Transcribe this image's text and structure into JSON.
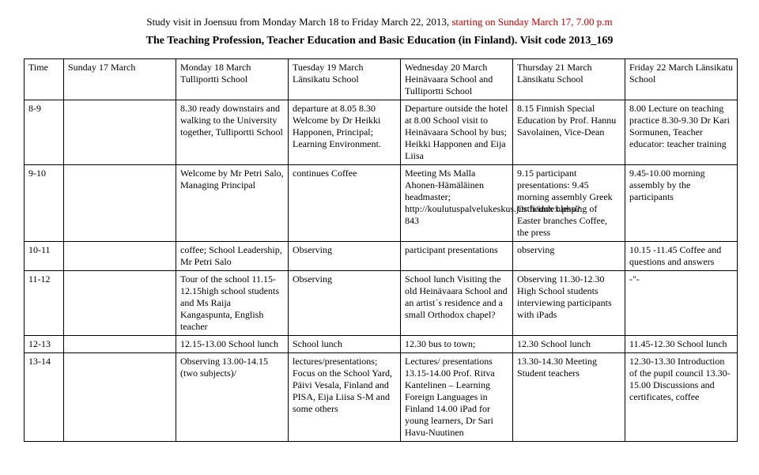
{
  "header": {
    "line1_a": "Study visit in Joensuu from Monday March 18 to Friday March 22, 2013, ",
    "line1_b": "starting on Sunday March 17, 7.00 p.m",
    "line2": "The Teaching Profession, Teacher Education and Basic Education (in Finland). Visit code 2013_169"
  },
  "table": {
    "columns": [
      "Time",
      "Sunday 17 March",
      "Monday 18 March Tulliportti School",
      "Tuesday 19 March Länsikatu School",
      "Wednesday 20 March Heinävaara School and Tulliportti School",
      "Thursday 21 March Länsikatu School",
      "Friday 22 March Länsikatu School"
    ],
    "rows": [
      {
        "time": "8-9",
        "sun": "",
        "mon": "8.30 ready downstairs and walking to the University together, Tulliportti School",
        "tue": "departure at 8.05 8.30 Welcome by Dr Heikki Happonen, Principal; Learning Environment.",
        "wed": "Departure outside the hotel at 8.00 School visit to Heinävaara School by bus; Heikki Happonen and Eija Liisa",
        "thu": "8.15 Finnish Special Education by Prof. Hannu Savolainen, Vice-Dean",
        "fri": "8.00 Lecture on teaching practice 8.30-9.30 Dr Kari Sormunen, Teacher educator: teacher training"
      },
      {
        "time": "9-10",
        "sun": "",
        "mon": "Welcome by Mr Petri Salo, Managing Principal",
        "tue": "continues Coffee",
        "wed": "Meeting Ms Malla Ahonen-Hämäläinen headmaster; http://koulutuspalvelukeskus.jns.fi/index.php?843",
        "thu": "9.15 participant presentations: 9.45 morning assembly Greek Orthodox blessing of Easter branches Coffee, the press",
        "fri": "9.45-10.00 morning assembly by the participants"
      },
      {
        "time": "10-11",
        "sun": "",
        "mon": "coffee; School Leadership, Mr Petri Salo",
        "tue": "Observing",
        "wed": "participant presentations",
        "thu": "observing",
        "fri": "10.15 -11.45 Coffee and questions and answers"
      },
      {
        "time": "11-12",
        "sun": "",
        "mon": "Tour of the school 11.15-12.15high school students and Ms Raija Kangaspunta, English teacher",
        "tue": "Observing",
        "wed": "School lunch Visiting the old Heinävaara School and an artist´s residence and a small Orthodox chapel?",
        "thu": "Observing 11.30-12.30 High School students interviewing participants with iPads",
        "fri": "-\"-"
      },
      {
        "time": "12-13",
        "sun": "",
        "mon": "12.15-13.00 School lunch",
        "tue": "School lunch",
        "wed": "12.30 bus to town;",
        "thu": "12.30 School lunch",
        "fri": "11.45-12.30 School lunch"
      },
      {
        "time": "13-14",
        "sun": "",
        "mon": "Observing 13.00-14.15 (two subjects)/",
        "tue": "lectures/presentations; Focus on the School Yard, Päivi Vesala, Finland and PISA, Eija Liisa S-M and some others",
        "wed": "Lectures/ presentations 13.15-14.00 Prof. Ritva Kantelinen – Learning Foreign Languages in Finland 14.00 iPad for young learners, Dr Sari Havu-Nuutinen",
        "thu": "13.30-14.30 Meeting Student teachers",
        "fri": "12.30-13.30 Introduction of the pupil council 13.30-15.00 Discussions and certificates, coffee"
      }
    ]
  },
  "style": {
    "accent_color": "#cc0000",
    "border_color": "#000000",
    "font_family": "Times New Roman",
    "body_fontsize": 12,
    "header_fontsize": 14
  }
}
